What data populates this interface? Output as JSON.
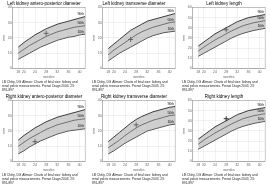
{
  "chart_data": [
    {
      "type": "line",
      "title": "Left kidney antero-posterior diameter",
      "x_label": "weeks",
      "y_label": "mm",
      "x": [
        18,
        20,
        22,
        24,
        26,
        28,
        30,
        32,
        34,
        36,
        38,
        40,
        42
      ],
      "xlim": [
        16,
        42
      ],
      "xticks": [
        18,
        20,
        24,
        28,
        32,
        36,
        40
      ],
      "ylim": [
        0,
        40
      ],
      "yticks": [
        0,
        10,
        20,
        30,
        40
      ],
      "grid": true,
      "series": [
        {
          "name": "90th",
          "color": "#111111",
          "values": [
            14,
            17,
            19.5,
            22,
            24,
            26,
            27.5,
            29,
            30,
            31,
            32,
            33,
            34
          ]
        },
        {
          "name": "50th",
          "color": "#111111",
          "values": [
            10,
            12.5,
            15,
            17,
            19,
            21,
            22.5,
            24,
            25,
            26,
            27,
            27.5,
            28
          ]
        },
        {
          "name": "10th",
          "color": "#111111",
          "values": [
            6,
            8,
            10,
            12,
            14,
            15.5,
            17,
            18.5,
            19.5,
            20.5,
            21,
            22,
            22.5
          ]
        },
        {
          "type": "scatter",
          "marker": "cross",
          "color": "#000000",
          "x": [
            28
          ],
          "values": [
            23
          ]
        }
      ],
      "caption": "LB Chitty, DG Altman: Charts of fetal size: kidney and\nrenal pelvis measurements. Prenat Diagn 2003, 23:\n891-897"
    },
    {
      "type": "line",
      "title": "Left kidney transverse diameter",
      "x_label": "weeks",
      "y_label": "mm",
      "x": [
        18,
        20,
        22,
        24,
        26,
        28,
        30,
        32,
        34,
        36,
        38,
        40,
        42
      ],
      "xlim": [
        16,
        42
      ],
      "xticks": [
        18,
        20,
        24,
        28,
        32,
        36,
        40
      ],
      "ylim": [
        0,
        40
      ],
      "yticks": [
        0,
        10,
        20,
        30,
        40
      ],
      "grid": true,
      "series": [
        {
          "name": "90th",
          "color": "#111111",
          "values": [
            13,
            16,
            19,
            22,
            25,
            27,
            29,
            31,
            32,
            33,
            34,
            35,
            36
          ]
        },
        {
          "name": "50th",
          "color": "#111111",
          "values": [
            9,
            12,
            14.5,
            17,
            19.5,
            22,
            24,
            25.5,
            27,
            28,
            29,
            30,
            30.5
          ]
        },
        {
          "name": "10th",
          "color": "#111111",
          "values": [
            5,
            7.5,
            10,
            12,
            14,
            16,
            18,
            20,
            21.5,
            22.5,
            23.5,
            24,
            24.5
          ]
        },
        {
          "type": "scatter",
          "marker": "cross",
          "color": "#000000",
          "x": [
            26
          ],
          "values": [
            19
          ]
        }
      ],
      "caption": "LB Chitty, DG Altman: Charts of fetal size: kidney and\nrenal pelvis measurements. Prenat Diagn 2003, 23:\n891-897"
    },
    {
      "type": "line",
      "title": "Left kidney length",
      "x_label": "weeks",
      "y_label": "mm",
      "x": [
        18,
        20,
        22,
        24,
        26,
        28,
        30,
        32,
        34,
        36,
        38,
        40,
        42
      ],
      "xlim": [
        16,
        42
      ],
      "xticks": [
        18,
        20,
        24,
        28,
        32,
        36,
        40
      ],
      "ylim": [
        0,
        60
      ],
      "yticks": [
        0,
        10,
        20,
        30,
        40,
        50,
        60
      ],
      "grid": true,
      "series": [
        {
          "name": "90th",
          "color": "#111111",
          "values": [
            22,
            26,
            30,
            34,
            37,
            40,
            43,
            46,
            48,
            50,
            51,
            52,
            53
          ]
        },
        {
          "name": "50th",
          "color": "#111111",
          "values": [
            17,
            21,
            24.5,
            28,
            31,
            34,
            37,
            39.5,
            42,
            43.5,
            45,
            46,
            47
          ]
        },
        {
          "name": "10th",
          "color": "#111111",
          "values": [
            12,
            15,
            18,
            21,
            24,
            27,
            30,
            32.5,
            34.5,
            36,
            37.5,
            38.5,
            39.5
          ]
        },
        {
          "type": "scatter",
          "marker": "cross",
          "color": "#000000",
          "x": [
            28
          ],
          "values": [
            38
          ]
        }
      ],
      "caption": "LB Chitty, DG Altman: Charts of fetal size: kidney and\nrenal pelvis measurements. Prenat Diagn 2003, 23:\n891-897"
    },
    {
      "type": "line",
      "title": "Right kidney antero-posterior diameter",
      "x_label": "weeks",
      "y_label": "mm",
      "x": [
        18,
        20,
        22,
        24,
        26,
        28,
        30,
        32,
        34,
        36,
        38,
        40,
        42
      ],
      "xlim": [
        16,
        42
      ],
      "xticks": [
        18,
        20,
        24,
        28,
        32,
        36,
        40
      ],
      "ylim": [
        0,
        40
      ],
      "yticks": [
        0,
        10,
        20,
        30,
        40
      ],
      "grid": true,
      "series": [
        {
          "name": "90th",
          "color": "#111111",
          "values": [
            14,
            17,
            19.5,
            22,
            24,
            26,
            27.5,
            29,
            30,
            31,
            32,
            33,
            34
          ]
        },
        {
          "name": "50th",
          "color": "#111111",
          "values": [
            10,
            12.5,
            15,
            17,
            19,
            21,
            22.5,
            24,
            25,
            26,
            27,
            27.5,
            28
          ]
        },
        {
          "name": "10th",
          "color": "#111111",
          "values": [
            5,
            7,
            9.5,
            11.5,
            13.5,
            15,
            16.5,
            18,
            19,
            20,
            20.5,
            21,
            21.5
          ]
        },
        {
          "type": "scatter",
          "marker": "cross",
          "color": "#000000",
          "x": [
            24
          ],
          "values": [
            13
          ]
        }
      ],
      "caption": "LB Chitty, DG Altman: Charts of fetal size: kidney and\nrenal pelvis measurements. Prenat Diagn 2003, 23:\n891-897"
    },
    {
      "type": "line",
      "title": "Right kidney transverse diameter",
      "x_label": "weeks",
      "y_label": "mm",
      "x": [
        18,
        20,
        22,
        24,
        26,
        28,
        30,
        32,
        34,
        36,
        38,
        40,
        42
      ],
      "xlim": [
        16,
        42
      ],
      "xticks": [
        18,
        20,
        24,
        28,
        32,
        36,
        40
      ],
      "ylim": [
        0,
        40
      ],
      "yticks": [
        0,
        10,
        20,
        30,
        40
      ],
      "grid": true,
      "series": [
        {
          "name": "90th",
          "color": "#111111",
          "values": [
            13,
            16,
            19,
            22,
            25,
            27.5,
            29.5,
            31,
            32.5,
            33.5,
            34.5,
            35.5,
            36
          ]
        },
        {
          "name": "50th",
          "color": "#111111",
          "values": [
            9,
            11.5,
            14,
            17,
            19.5,
            22,
            24,
            25.5,
            27,
            28,
            29,
            30,
            30.5
          ]
        },
        {
          "name": "10th",
          "color": "#111111",
          "values": [
            5,
            7,
            9.5,
            12,
            14,
            16,
            18,
            20,
            21,
            22,
            23,
            24,
            24.5
          ]
        },
        {
          "type": "scatter",
          "marker": "cross",
          "color": "#000000",
          "x": [
            28
          ],
          "values": [
            24
          ]
        }
      ],
      "caption": "LB Chitty, DG Altman: Charts of fetal size: kidney and\nrenal pelvis measurements. Prenat Diagn 2003, 23:\n891-897"
    },
    {
      "type": "line",
      "title": "Right kidney length",
      "x_label": "weeks",
      "y_label": "mm",
      "x": [
        18,
        20,
        22,
        24,
        26,
        28,
        30,
        32,
        34,
        36,
        38,
        40,
        42
      ],
      "xlim": [
        16,
        42
      ],
      "xticks": [
        18,
        20,
        24,
        28,
        32,
        36,
        40
      ],
      "ylim": [
        0,
        60
      ],
      "yticks": [
        0,
        10,
        20,
        30,
        40,
        50,
        60
      ],
      "grid": true,
      "series": [
        {
          "name": "90th",
          "color": "#111111",
          "values": [
            22,
            26,
            30,
            34,
            37,
            40,
            43,
            46,
            48,
            50,
            51,
            52,
            53
          ]
        },
        {
          "name": "50th",
          "color": "#111111",
          "values": [
            17,
            21,
            24.5,
            28,
            31,
            34,
            37,
            39.5,
            42,
            43.5,
            45,
            46,
            47
          ]
        },
        {
          "name": "10th",
          "color": "#111111",
          "values": [
            12,
            15,
            18,
            21,
            24,
            27,
            30,
            32.5,
            34.5,
            36,
            37.5,
            38.5,
            39.5
          ]
        },
        {
          "type": "scatter",
          "marker": "cross",
          "color": "#000000",
          "x": [
            28
          ],
          "values": [
            42
          ]
        }
      ],
      "caption": "LB Chitty, DG Altman: Charts of fetal size: kidney and\nrenal pelvis measurements. Prenat Diagn 2003, 23:\n891-897"
    }
  ]
}
